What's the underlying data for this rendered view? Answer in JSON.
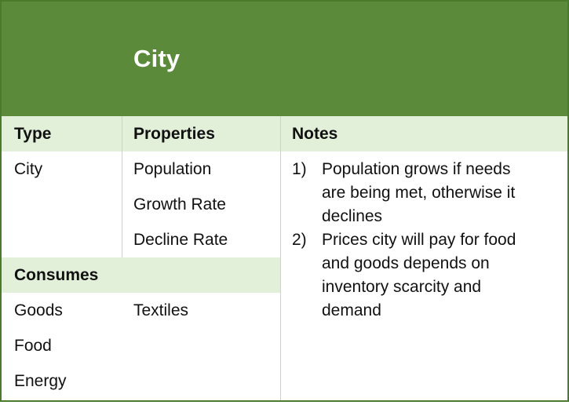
{
  "title": "City",
  "headers": {
    "type": "Type",
    "properties": "Properties",
    "notes": "Notes"
  },
  "type_value": "City",
  "properties": [
    "Population",
    "Growth Rate",
    "Decline Rate"
  ],
  "consumes": {
    "label": "Consumes",
    "items": [
      "Goods",
      "Food",
      "Energy"
    ],
    "secondary": "Textiles"
  },
  "notes": [
    {
      "num": "1)",
      "lines": [
        "Population grows if needs",
        "are being met, otherwise it",
        "declines"
      ]
    },
    {
      "num": "2)",
      "lines": [
        "Prices city will pay for food",
        "and goods depends on",
        "inventory scarcity and",
        "demand"
      ]
    }
  ],
  "colors": {
    "header": "#5b8a3a",
    "band": "#e2efd9",
    "border": "#4a7a2c"
  }
}
